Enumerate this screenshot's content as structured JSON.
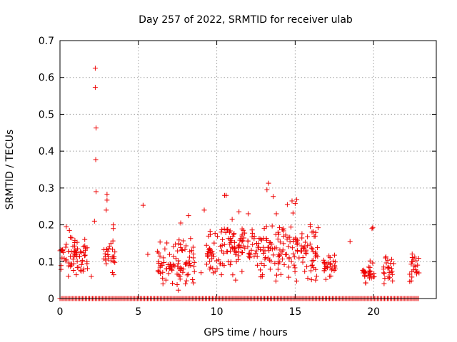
{
  "chart_data": {
    "type": "scatter",
    "title": "Day 257 of 2022, SRMTID for receiver ulab",
    "xlabel": "GPS time / hours",
    "ylabel": "SRMTID / TECUs",
    "xlim": [
      0,
      24
    ],
    "ylim": [
      0,
      0.7
    ],
    "xticks": [
      0,
      5,
      10,
      15,
      20
    ],
    "xtick_labels": [
      "0",
      "5",
      "10",
      "15",
      "20"
    ],
    "yticks": [
      0,
      0.1,
      0.2,
      0.3,
      0.4,
      0.5,
      0.6,
      0.7
    ],
    "ytick_labels": [
      "0",
      "0.1",
      "0.2",
      "0.3",
      "0.4",
      "0.5",
      "0.6",
      "0.7"
    ],
    "grid": true,
    "marker": "+",
    "color": "#ee0000",
    "clusters": [
      {
        "x": [
          0.0,
          1.9
        ],
        "y": [
          0.06,
          0.2
        ]
      },
      {
        "x": [
          2.8,
          3.5
        ],
        "y": [
          0.07,
          0.2
        ]
      },
      {
        "x": [
          6.2,
          8.6
        ],
        "y": [
          0.03,
          0.22
        ]
      },
      {
        "x": [
          9.3,
          10.3
        ],
        "y": [
          0.05,
          0.24
        ]
      },
      {
        "x": [
          10.3,
          12.5
        ],
        "y": [
          0.05,
          0.28
        ]
      },
      {
        "x": [
          12.5,
          14.2
        ],
        "y": [
          0.06,
          0.25
        ]
      },
      {
        "x": [
          14.2,
          16.5
        ],
        "y": [
          0.05,
          0.27
        ]
      },
      {
        "x": [
          16.8,
          17.6
        ],
        "y": [
          0.05,
          0.15
        ]
      },
      {
        "x": [
          19.3,
          20.1
        ],
        "y": [
          0.04,
          0.12
        ]
      },
      {
        "x": [
          20.6,
          21.3
        ],
        "y": [
          0.04,
          0.16
        ]
      },
      {
        "x": [
          22.3,
          22.9
        ],
        "y": [
          0.05,
          0.17
        ]
      }
    ],
    "points": [
      [
        2.25,
        0.625
      ],
      [
        2.25,
        0.573
      ],
      [
        2.3,
        0.463
      ],
      [
        2.28,
        0.377
      ],
      [
        2.3,
        0.29
      ],
      [
        3.0,
        0.283
      ],
      [
        3.0,
        0.267
      ],
      [
        2.95,
        0.24
      ],
      [
        5.3,
        0.253
      ],
      [
        13.3,
        0.313
      ],
      [
        13.2,
        0.295
      ],
      [
        10.6,
        0.28
      ],
      [
        10.5,
        0.28
      ],
      [
        13.6,
        0.277
      ],
      [
        15.1,
        0.268
      ],
      [
        14.8,
        0.265
      ],
      [
        15.0,
        0.258
      ],
      [
        14.5,
        0.255
      ],
      [
        12.0,
        0.23
      ],
      [
        9.2,
        0.24
      ],
      [
        13.8,
        0.23
      ],
      [
        8.2,
        0.225
      ],
      [
        3.4,
        0.2
      ],
      [
        0.4,
        0.195
      ],
      [
        3.4,
        0.19
      ],
      [
        0.6,
        0.185
      ],
      [
        7.7,
        0.205
      ],
      [
        19.9,
        0.19
      ],
      [
        19.95,
        0.193
      ],
      [
        2.2,
        0.21
      ],
      [
        18.5,
        0.155
      ],
      [
        5.6,
        0.12
      ],
      [
        9.0,
        0.07
      ],
      [
        2.0,
        0.06
      ],
      [
        8.0,
        0.04
      ],
      [
        12.9,
        0.06
      ],
      [
        16.3,
        0.05
      ],
      [
        11.2,
        0.05
      ]
    ],
    "zero_band": {
      "x": [
        0,
        22.9
      ],
      "y": 0
    }
  }
}
